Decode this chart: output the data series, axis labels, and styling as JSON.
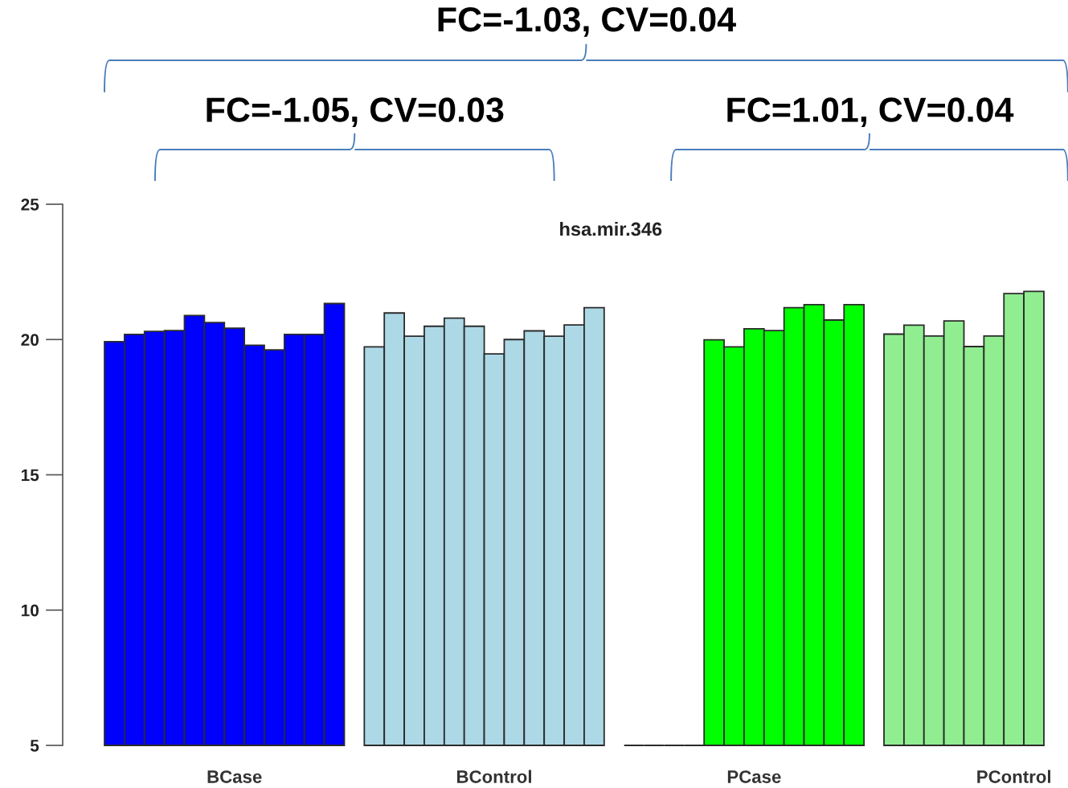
{
  "chart_data": {
    "type": "bar",
    "title": "hsa.mir.346",
    "categories": [
      null,
      null,
      null,
      null,
      null,
      null,
      "BCase",
      null,
      null,
      null,
      null,
      null,
      null,
      null,
      null,
      null,
      null,
      null,
      null,
      "BControl",
      null,
      null,
      null,
      null,
      null,
      null,
      null,
      null,
      null,
      null,
      null,
      null,
      "PCase",
      null,
      null,
      null,
      null,
      null,
      null,
      null,
      null,
      null,
      null,
      null,
      null,
      "PControl",
      null
    ],
    "values": [
      19.92,
      20.19,
      20.3,
      20.33,
      20.89,
      20.63,
      20.42,
      19.79,
      19.62,
      20.19,
      20.19,
      21.33,
      null,
      19.73,
      20.98,
      20.12,
      20.49,
      20.79,
      20.49,
      19.47,
      20.0,
      20.32,
      20.12,
      20.54,
      21.18,
      null,
      5,
      5,
      5,
      5,
      19.99,
      19.73,
      20.4,
      20.33,
      21.18,
      21.29,
      20.72,
      21.29,
      null,
      20.2,
      20.53,
      20.13,
      20.69,
      19.74,
      20.13,
      21.7,
      21.78
    ],
    "colors": [
      "#0000ff",
      "#0000ff",
      "#0000ff",
      "#0000ff",
      "#0000ff",
      "#0000ff",
      "#0000ff",
      "#0000ff",
      "#0000ff",
      "#0000ff",
      "#0000ff",
      "#0000ff",
      null,
      "#add8e6",
      "#add8e6",
      "#add8e6",
      "#add8e6",
      "#add8e6",
      "#add8e6",
      "#add8e6",
      "#add8e6",
      "#add8e6",
      "#add8e6",
      "#add8e6",
      "#add8e6",
      null,
      "#2b2b2b",
      "#2b2b2b",
      "#2b2b2b",
      "#2b2b2b",
      "#00ff00",
      "#00ff00",
      "#00ff00",
      "#00ff00",
      "#00ff00",
      "#00ff00",
      "#00ff00",
      "#00ff00",
      null,
      "#90ee90",
      "#90ee90",
      "#90ee90",
      "#90ee90",
      "#90ee90",
      "#90ee90",
      "#90ee90",
      "#90ee90"
    ],
    "ylim": [
      5,
      25
    ],
    "yticks": [
      5,
      10,
      15,
      20,
      25
    ],
    "grid": false,
    "annotations": [
      "FC=-1.03, CV=0.04",
      "FC=-1.05, CV=0.03",
      "FC=1.01, CV=0.04"
    ]
  }
}
